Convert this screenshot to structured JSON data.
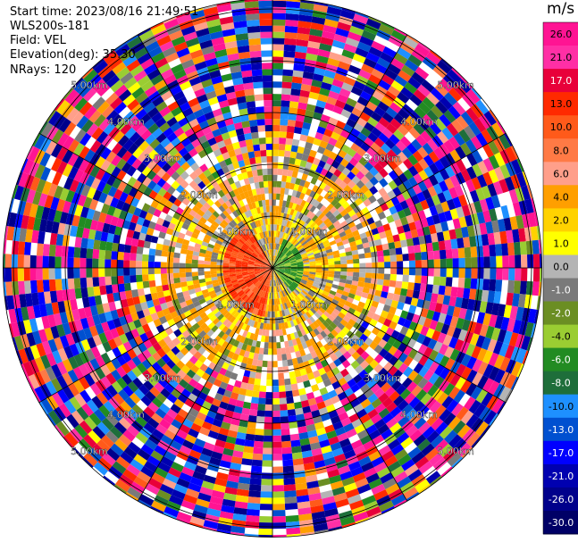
{
  "info": {
    "start_time": "Start time: 2023/08/16 21:49:51",
    "site": "WLS200s-181",
    "field": "Field: VEL",
    "elevation": "Elevation(deg): 35.30",
    "nrays": "NRays: 120"
  },
  "colorbar": {
    "unit": "m/s",
    "ticks": [
      "26.0",
      "21.0",
      "17.0",
      "13.0",
      "10.0",
      "8.0",
      "6.0",
      "4.0",
      "2.0",
      "1.0",
      "0.0",
      "-1.0",
      "-2.0",
      "-4.0",
      "-6.0",
      "-8.0",
      "-10.0",
      "-13.0",
      "-17.0",
      "-21.0",
      "-26.0",
      "-30.0"
    ],
    "colors": [
      "#ff1493",
      "#ff2fa5",
      "#e8003a",
      "#ff2a00",
      "#ff5a1a",
      "#ff7a45",
      "#ff9f8a",
      "#ff9f00",
      "#ffd200",
      "#ffff00",
      "#b4b4b4",
      "#7a7a7a",
      "#6b8e23",
      "#9acd32",
      "#228b22",
      "#1e6e3a",
      "#1e90ff",
      "#0050d0",
      "#0000ff",
      "#0000b0",
      "#00008b",
      "#000066"
    ]
  },
  "chart_data": {
    "type": "polar_ppi",
    "field": "VEL",
    "units": "m/s",
    "range_ring_labels": [
      "1.00km",
      "2.00km",
      "3.00km",
      "4.00km",
      "5.00km"
    ],
    "range_rings_km": [
      1,
      2,
      3,
      4,
      5
    ],
    "max_range_km": 5.2,
    "nrays": 120,
    "value_range": [
      -30,
      26
    ],
    "near_field_pattern": [
      {
        "sector": "east of center",
        "range_km": [
          0.0,
          0.6
        ],
        "velocity_ms": -8
      },
      {
        "sector": "west/southwest of center",
        "range_km": [
          0.0,
          1.0
        ],
        "velocity_ms": 8
      },
      {
        "sector": "ring 1-2 km",
        "velocity_ms": 2
      },
      {
        "sector": "beyond 2.5 km",
        "velocity_ms": "noise (mixed)"
      }
    ]
  }
}
